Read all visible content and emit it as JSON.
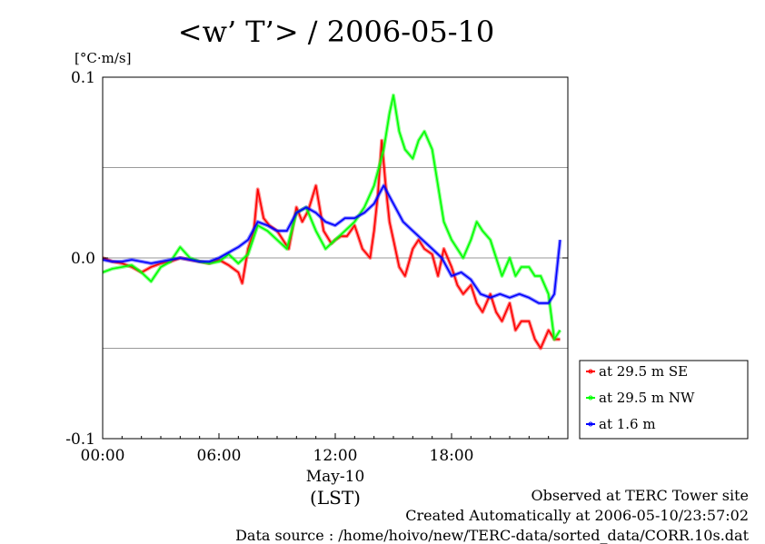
{
  "chart_data": {
    "type": "line",
    "title": "<w’ T’> / 2006-05-10",
    "ylabel": "[°C·m/s]",
    "xlabel": "(LST)",
    "date_label": "May-10",
    "xlim": [
      0,
      24
    ],
    "ylim": [
      -0.1,
      0.1
    ],
    "x_ticks": [
      {
        "value": 0,
        "label": "00:00"
      },
      {
        "value": 6,
        "label": "06:00"
      },
      {
        "value": 12,
        "label": "12:00"
      },
      {
        "value": 18,
        "label": "18:00"
      }
    ],
    "y_ticks": [
      {
        "value": -0.1,
        "label": "-0.1"
      },
      {
        "value": 0.0,
        "label": "0.0"
      },
      {
        "value": 0.1,
        "label": "0.1"
      }
    ],
    "gridlines_y": [
      -0.05,
      0.05
    ],
    "legend_position": "right",
    "series": [
      {
        "name": "at 29.5 m SE",
        "color": "#ff0000",
        "x": [
          0,
          0.5,
          1,
          1.5,
          2,
          2.5,
          3,
          3.5,
          4,
          4.5,
          5,
          5.5,
          6,
          6.5,
          7,
          7.2,
          7.5,
          7.8,
          8,
          8.3,
          8.6,
          9,
          9.3,
          9.6,
          10,
          10.3,
          10.6,
          11,
          11.4,
          11.8,
          12,
          12.3,
          12.6,
          13,
          13.4,
          13.8,
          14,
          14.2,
          14.4,
          14.6,
          14.8,
          15,
          15.3,
          15.6,
          16,
          16.3,
          16.6,
          17,
          17.3,
          17.6,
          18,
          18.3,
          18.6,
          19,
          19.3,
          19.6,
          20,
          20.3,
          20.6,
          21,
          21.3,
          21.6,
          22,
          22.3,
          22.6,
          23,
          23.3,
          23.6
        ],
        "values": [
          0.0,
          -0.002,
          -0.003,
          -0.005,
          -0.008,
          -0.005,
          -0.003,
          -0.002,
          0.0,
          -0.001,
          -0.002,
          -0.003,
          -0.001,
          -0.004,
          -0.008,
          -0.014,
          0.005,
          0.015,
          0.038,
          0.022,
          0.018,
          0.015,
          0.01,
          0.005,
          0.028,
          0.02,
          0.026,
          0.04,
          0.015,
          0.008,
          0.01,
          0.012,
          0.012,
          0.018,
          0.005,
          0.0,
          0.015,
          0.035,
          0.065,
          0.04,
          0.02,
          0.01,
          -0.005,
          -0.01,
          0.005,
          0.01,
          0.005,
          0.002,
          -0.01,
          0.005,
          -0.005,
          -0.015,
          -0.02,
          -0.015,
          -0.025,
          -0.03,
          -0.02,
          -0.03,
          -0.035,
          -0.025,
          -0.04,
          -0.035,
          -0.035,
          -0.045,
          -0.05,
          -0.04,
          -0.045,
          -0.045
        ]
      },
      {
        "name": "at 29.5 m NW",
        "color": "#00ff00",
        "x": [
          0,
          0.5,
          1,
          1.5,
          2,
          2.5,
          3,
          3.5,
          4,
          4.5,
          5,
          5.5,
          6,
          6.5,
          7,
          7.5,
          8,
          8.5,
          9,
          9.5,
          10,
          10.5,
          11,
          11.5,
          12,
          12.5,
          13,
          13.5,
          14,
          14.5,
          14.8,
          15,
          15.3,
          15.6,
          16,
          16.3,
          16.6,
          17,
          17.3,
          17.6,
          18,
          18.3,
          18.6,
          19,
          19.3,
          19.6,
          20,
          20.3,
          20.6,
          21,
          21.3,
          21.6,
          22,
          22.3,
          22.6,
          23,
          23.3,
          23.6
        ],
        "values": [
          -0.008,
          -0.006,
          -0.005,
          -0.004,
          -0.008,
          -0.013,
          -0.005,
          -0.002,
          0.006,
          0.0,
          -0.002,
          -0.003,
          -0.002,
          0.002,
          -0.003,
          0.002,
          0.018,
          0.015,
          0.01,
          0.005,
          0.025,
          0.028,
          0.015,
          0.005,
          0.01,
          0.015,
          0.02,
          0.028,
          0.04,
          0.06,
          0.08,
          0.09,
          0.07,
          0.06,
          0.055,
          0.065,
          0.07,
          0.06,
          0.04,
          0.02,
          0.01,
          0.005,
          0.0,
          0.01,
          0.02,
          0.015,
          0.01,
          0.0,
          -0.01,
          0.0,
          -0.01,
          -0.005,
          -0.005,
          -0.01,
          -0.01,
          -0.02,
          -0.045,
          -0.04
        ]
      },
      {
        "name": "at 1.6 m",
        "color": "#0000ff",
        "x": [
          0,
          0.5,
          1,
          1.5,
          2,
          2.5,
          3,
          3.5,
          4,
          4.5,
          5,
          5.5,
          6,
          6.5,
          7,
          7.5,
          8,
          8.5,
          9,
          9.5,
          10,
          10.5,
          11,
          11.5,
          12,
          12.5,
          13,
          13.5,
          14,
          14.5,
          15,
          15.5,
          16,
          16.5,
          17,
          17.5,
          18,
          18.5,
          19,
          19.5,
          20,
          20.5,
          21,
          21.5,
          22,
          22.5,
          23,
          23.3,
          23.6
        ],
        "values": [
          -0.001,
          -0.002,
          -0.002,
          -0.001,
          -0.002,
          -0.003,
          -0.002,
          -0.001,
          0.0,
          -0.001,
          -0.002,
          -0.002,
          0.0,
          0.003,
          0.006,
          0.01,
          0.02,
          0.018,
          0.015,
          0.015,
          0.025,
          0.028,
          0.025,
          0.02,
          0.018,
          0.022,
          0.022,
          0.025,
          0.03,
          0.04,
          0.03,
          0.02,
          0.015,
          0.01,
          0.005,
          0.0,
          -0.01,
          -0.008,
          -0.012,
          -0.02,
          -0.022,
          -0.02,
          -0.022,
          -0.02,
          -0.022,
          -0.025,
          -0.025,
          -0.02,
          0.01
        ]
      }
    ]
  },
  "footer": {
    "line1": "Observed at TERC Tower site",
    "line2": "Created Automatically at 2006-05-10/23:57:02",
    "line3": "Data source : /home/hoivo/new/TERC-data/sorted_data/CORR.10s.dat"
  }
}
